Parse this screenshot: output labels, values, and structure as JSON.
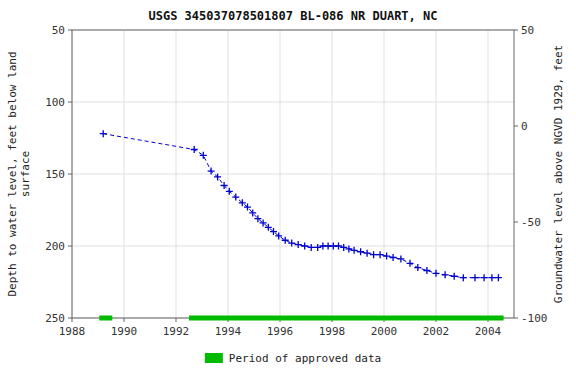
{
  "chart_data": {
    "type": "line",
    "title": "USGS 345037078501807 BL-086 NR DUART, NC",
    "y_label": "Depth to water level, feet below land\nsurface",
    "y2_label": "Groundwater level above NGVD 1929, feet",
    "x": [
      1989.2,
      1992.7,
      1993.05,
      1993.35,
      1993.6,
      1993.85,
      1994.05,
      1994.3,
      1994.55,
      1994.75,
      1994.95,
      1995.15,
      1995.35,
      1995.55,
      1995.75,
      1995.95,
      1996.2,
      1996.45,
      1996.7,
      1996.95,
      1997.2,
      1997.45,
      1997.65,
      1997.85,
      1998.05,
      1998.25,
      1998.45,
      1998.65,
      1998.85,
      1999.1,
      1999.35,
      1999.6,
      1999.85,
      2000.1,
      2000.35,
      2000.65,
      2001.0,
      2001.3,
      2001.65,
      2002.0,
      2002.35,
      2002.7,
      2003.05,
      2003.5,
      2003.85,
      2004.15,
      2004.4
    ],
    "series": [
      {
        "color": "#0000cc",
        "marker": "plus",
        "line_style": "dashed",
        "values": [
          122,
          133,
          137,
          148,
          152,
          158,
          162,
          166,
          170,
          173,
          177,
          181,
          184,
          187,
          190,
          193,
          196,
          198,
          199,
          200,
          201,
          201,
          200,
          200,
          200,
          200,
          201,
          202,
          203,
          204,
          205,
          206,
          206,
          207,
          208,
          209,
          212,
          215,
          217,
          219,
          220,
          221,
          222,
          222,
          222,
          222,
          222
        ]
      },
      {
        "name": "Period of approved data",
        "type": "span",
        "color": "#00bb00",
        "values": [
          [
            1989.05,
            1989.55
          ],
          [
            1992.5,
            2004.6
          ]
        ]
      }
    ],
    "xlim": [
      1988,
      2005
    ],
    "xticks": [
      1988,
      1990,
      1992,
      1994,
      1996,
      1998,
      2000,
      2002,
      2004
    ],
    "ylim": [
      250,
      50
    ],
    "yticks": [
      50,
      100,
      150,
      200,
      250
    ],
    "y2lim": [
      -100,
      50
    ],
    "y2ticks": [
      50,
      0,
      -50,
      -100
    ],
    "grid": true,
    "legend": "bottom"
  }
}
